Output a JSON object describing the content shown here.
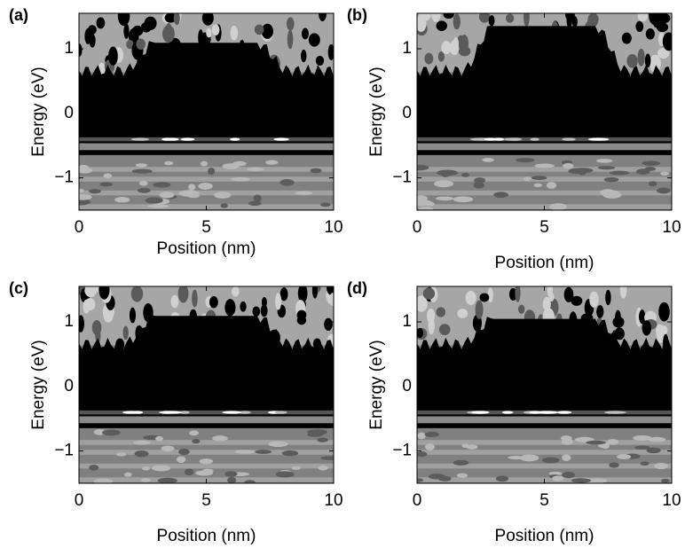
{
  "chart_data": [
    {
      "type": "contour",
      "label": "(a)",
      "xlabel": "Position (nm)",
      "ylabel": "Energy (eV)",
      "xlim": [
        0,
        10
      ],
      "ylim": [
        -1.5,
        1.55
      ],
      "xticks": [
        0,
        5,
        10
      ],
      "yticks": [
        {
          "value": -1,
          "label": "−1"
        },
        0,
        1
      ]
    },
    {
      "type": "contour",
      "label": "(b)",
      "xlabel": "Position (nm)",
      "ylabel": "Energy (eV)",
      "xlim": [
        0,
        10
      ],
      "ylim": [
        -1.5,
        1.55
      ],
      "xticks": [
        0,
        5,
        10
      ],
      "yticks": [
        {
          "value": -1,
          "label": "−1"
        },
        0,
        1
      ]
    },
    {
      "type": "contour",
      "label": "(c)",
      "xlabel": "Position (nm)",
      "ylabel": "Energy (eV)",
      "xlim": [
        0,
        10
      ],
      "ylim": [
        -1.5,
        1.55
      ],
      "xticks": [
        0,
        5,
        10
      ],
      "yticks": [
        {
          "value": -1,
          "label": "−1"
        },
        0,
        1
      ]
    },
    {
      "type": "contour",
      "label": "(d)",
      "xlabel": "Position (nm)",
      "ylabel": "Energy (eV)",
      "xlim": [
        0,
        10
      ],
      "ylim": [
        -1.5,
        1.55
      ],
      "xticks": [
        0,
        5,
        10
      ],
      "yticks": [
        {
          "value": -1,
          "label": "−1"
        },
        0,
        1
      ]
    }
  ]
}
